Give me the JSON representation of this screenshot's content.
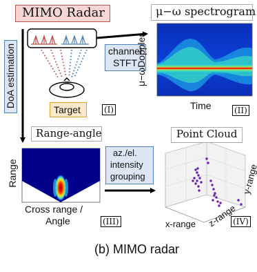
{
  "radar_title": "MIMO Radar",
  "spectrogram_title": "μ−ω spectrogram",
  "channel_stft": [
    "channel",
    "STFT"
  ],
  "doa_label": "DoA estimation",
  "target_label": "Target",
  "step_labels": [
    "(I)",
    "(II)",
    "(III)",
    "(IV)"
  ],
  "spectrogram_ylabel": "μ−ωDoppler",
  "spectrogram_xlabel": "Time",
  "range_angle_title": "Range-angle",
  "range_angle_ylabel": "Range",
  "range_angle_xlabel": [
    "Cross range /",
    "Angle"
  ],
  "grouping_label": [
    "az./el.",
    "intensity",
    "grouping"
  ],
  "point_cloud_title": "Point Cloud",
  "point_cloud_axes": {
    "x": "x-range",
    "y": "y-range",
    "z": "z-range"
  },
  "caption": "(b) MIMO radar",
  "colors": {
    "radar_fill": "#f6d5d5",
    "radar_border": "#c0504d",
    "label_fill": "#dce6f4",
    "label_border": "#4f81bd",
    "target_fill": "#fde9c9",
    "target_border": "#e6a12e",
    "tx_red": "#c0504d",
    "rx_blue": "#4f81bd",
    "points": "#6a1fb5",
    "heatmap_bg": "#00008b"
  }
}
